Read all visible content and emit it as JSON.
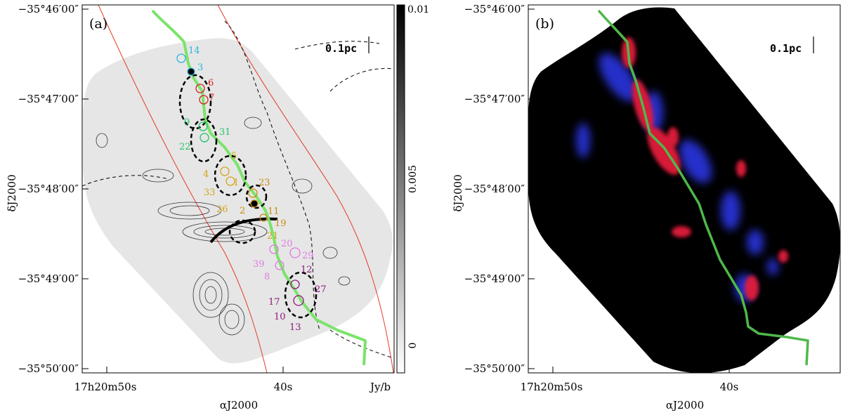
{
  "panel_a": {
    "label": "(a)",
    "scale_bar": "0.1pc",
    "y_ticks": [
      "−35°46′00″",
      "−35°47′00″",
      "−35°48′00″",
      "−35°49′00″",
      "−35°50′00″"
    ],
    "x_ticks": [
      "17h20m50s",
      "40s"
    ],
    "ylabel": "δJ2000",
    "xlabel": "αJ2000",
    "colorbar": {
      "ticks": [
        "0.01",
        "0.005",
        "0"
      ],
      "unit": "Jy/b"
    },
    "sources": [
      {
        "id": "14",
        "color": "#29b6e0"
      },
      {
        "id": "3",
        "color": "#29b6e0"
      },
      {
        "id": "6",
        "color": "#d62020"
      },
      {
        "id": "7",
        "color": "#d62020"
      },
      {
        "id": "9",
        "color": "#22c46a"
      },
      {
        "id": "31",
        "color": "#22c46a"
      },
      {
        "id": "22",
        "color": "#22c46a"
      },
      {
        "id": "5",
        "color": "#d4a514"
      },
      {
        "id": "4",
        "color": "#d4a514"
      },
      {
        "id": "1",
        "color": "#d4a514"
      },
      {
        "id": "33",
        "color": "#d4a514"
      },
      {
        "id": "23",
        "color": "#c98a12"
      },
      {
        "id": "26",
        "color": "#d4a514"
      },
      {
        "id": "2",
        "color": "#c98a12"
      },
      {
        "id": "11",
        "color": "#c98a12"
      },
      {
        "id": "19",
        "color": "#c98a12"
      },
      {
        "id": "21",
        "color": "#d4a514"
      },
      {
        "id": "20",
        "color": "#e07ae0"
      },
      {
        "id": "29",
        "color": "#e07ae0"
      },
      {
        "id": "39",
        "color": "#e07ae0"
      },
      {
        "id": "12",
        "color": "#8a1a7a"
      },
      {
        "id": "8",
        "color": "#e07ae0"
      },
      {
        "id": "27",
        "color": "#8a1a7a"
      },
      {
        "id": "17",
        "color": "#8a1a7a"
      },
      {
        "id": "10",
        "color": "#8a1a7a"
      },
      {
        "id": "13",
        "color": "#8a1a7a"
      }
    ]
  },
  "panel_b": {
    "label": "(b)",
    "scale_bar": "0.1pc",
    "y_ticks": [
      "−35°46′00″",
      "−35°47′00″",
      "−35°48′00″",
      "−35°49′00″",
      "−35°50′00″"
    ],
    "x_ticks": [
      "17h20m50s",
      "40s"
    ],
    "ylabel": "δJ2000",
    "xlabel": "αJ2000"
  },
  "colors": {
    "filament": "#7be36a",
    "red_lines": "#e23b2a",
    "background_map": "#e6e6e6"
  }
}
